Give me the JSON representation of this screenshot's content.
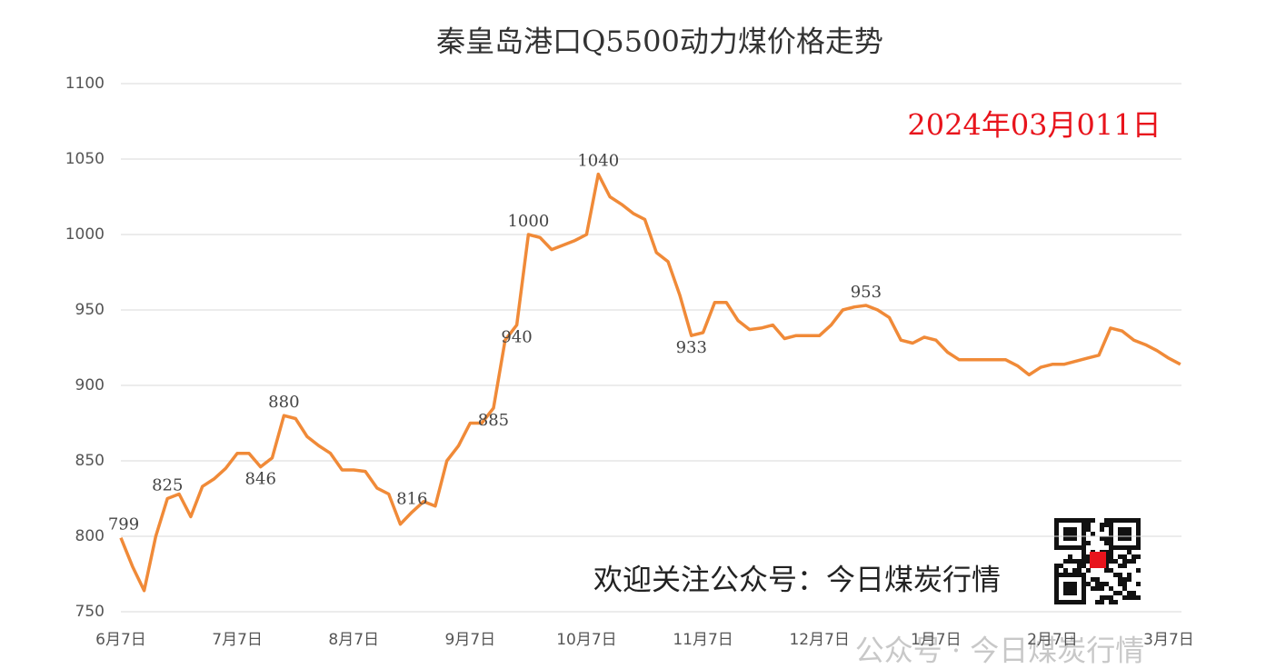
{
  "chart_data": {
    "type": "line",
    "title": "秦皇岛港口Q5500动力煤价格走势",
    "annotation": "2024年03月011日",
    "footer_text": "欢迎关注公众号：今日煤炭行情",
    "watermark": "公众号 · 今日煤炭行情",
    "categories": [
      "6月7日",
      null,
      null,
      null,
      null,
      null,
      null,
      null,
      null,
      null,
      "7月7日",
      null,
      null,
      null,
      null,
      null,
      null,
      null,
      null,
      null,
      "8月7日",
      null,
      null,
      null,
      null,
      null,
      null,
      null,
      null,
      null,
      "9月7日",
      null,
      null,
      null,
      null,
      null,
      null,
      null,
      null,
      null,
      "10月7日",
      null,
      null,
      null,
      null,
      null,
      null,
      null,
      null,
      null,
      "11月7日",
      null,
      null,
      null,
      null,
      null,
      null,
      null,
      null,
      null,
      "12月7日",
      null,
      null,
      null,
      null,
      null,
      null,
      null,
      null,
      null,
      "1月7日",
      null,
      null,
      null,
      null,
      null,
      null,
      null,
      null,
      null,
      "2月7日",
      null,
      null,
      null,
      null,
      null,
      null,
      null,
      null,
      null,
      "3月7日",
      null
    ],
    "values": [
      799,
      780,
      764,
      800,
      825,
      828,
      813,
      833,
      838,
      845,
      855,
      855,
      846,
      852,
      880,
      878,
      866,
      860,
      855,
      844,
      844,
      843,
      832,
      828,
      808,
      816,
      823,
      820,
      850,
      860,
      875,
      875,
      885,
      930,
      940,
      1000,
      998,
      990,
      993,
      996,
      1000,
      1040,
      1025,
      1020,
      1014,
      1010,
      988,
      982,
      960,
      933,
      935,
      955,
      955,
      943,
      937,
      938,
      940,
      931,
      933,
      933,
      933,
      940,
      950,
      952,
      953,
      950,
      945,
      930,
      928,
      932,
      930,
      922,
      917,
      917,
      917,
      917,
      917,
      913,
      907,
      912,
      914,
      914,
      916,
      918,
      920,
      938,
      936,
      930,
      927,
      923,
      918,
      914
    ],
    "value_labels": [
      "799",
      null,
      null,
      null,
      "825",
      null,
      null,
      null,
      null,
      null,
      null,
      null,
      "846",
      null,
      "880",
      null,
      null,
      null,
      null,
      null,
      null,
      null,
      null,
      null,
      null,
      "816",
      null,
      null,
      null,
      null,
      null,
      null,
      "885",
      null,
      "940",
      "1000",
      null,
      null,
      null,
      null,
      null,
      "1040",
      null,
      null,
      null,
      null,
      null,
      null,
      null,
      "933",
      null,
      null,
      null,
      null,
      null,
      null,
      null,
      null,
      null,
      null,
      null,
      null,
      null,
      null,
      "953",
      null,
      null,
      null,
      null,
      null,
      null,
      null,
      null,
      null,
      null,
      null,
      null,
      null,
      null,
      null,
      null,
      null,
      null,
      null,
      null,
      null,
      null,
      null,
      null,
      null,
      null,
      null
    ],
    "color": "#f08a38",
    "ylim": [
      750,
      1100
    ],
    "yticks": [
      750,
      800,
      850,
      900,
      950,
      1000,
      1050,
      1100
    ],
    "grid": true
  }
}
